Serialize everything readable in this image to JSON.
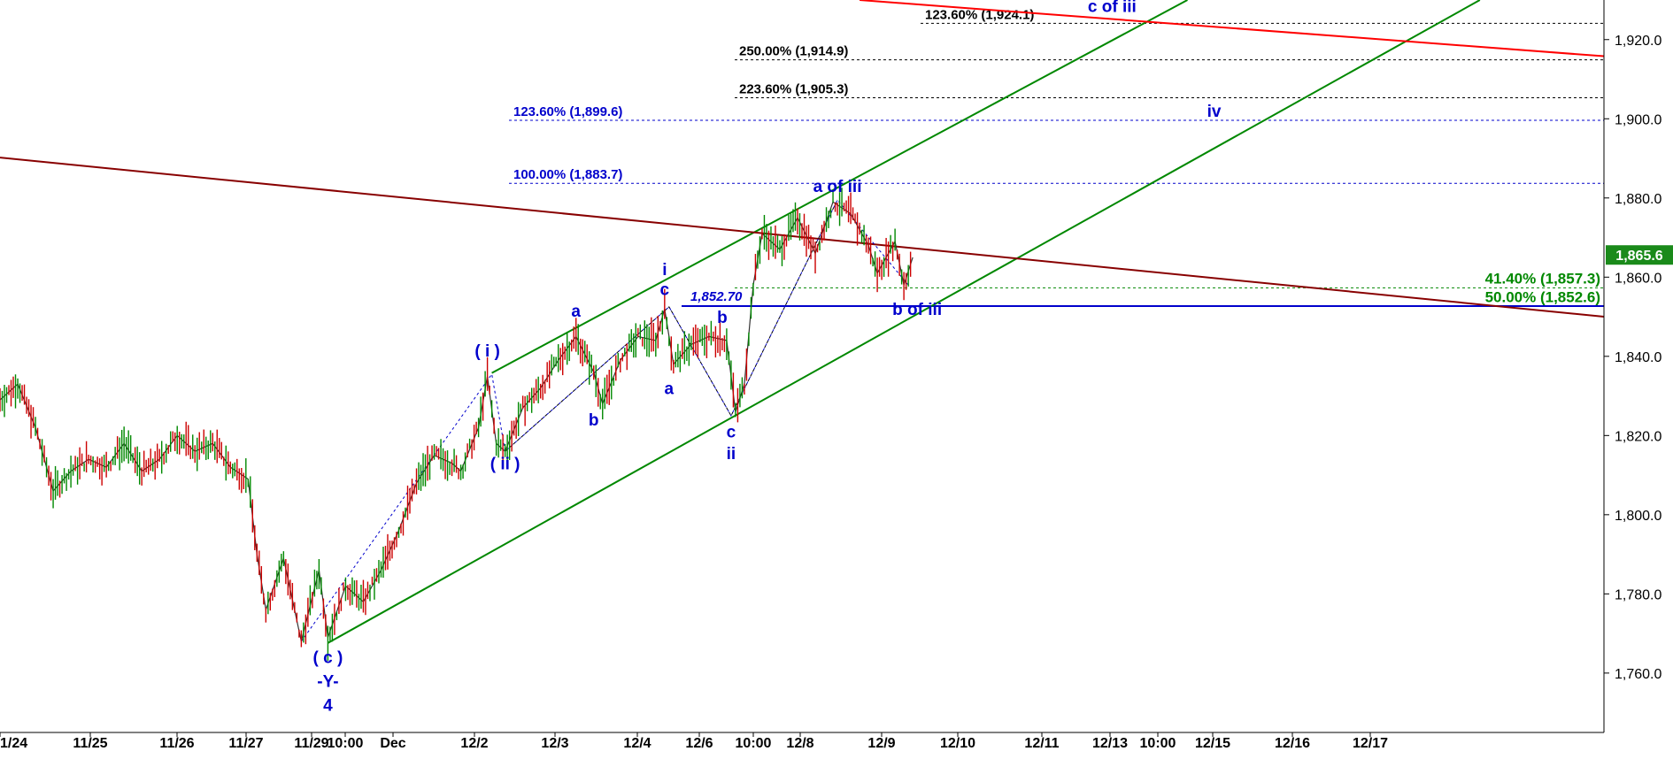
{
  "chart_data": {
    "type": "line",
    "title": "",
    "xlabel": "",
    "ylabel": "",
    "ylim": [
      1745,
      1930
    ],
    "y_ticks": [
      1760,
      1780,
      1800,
      1820,
      1840,
      1860,
      1880,
      1900,
      1920
    ],
    "y_tick_labels": [
      "1,760.0",
      "1,780.0",
      "1,800.0",
      "1,820.0",
      "1,840.0",
      "1,860.0",
      "1,880.0",
      "1,900.0",
      "1,920.0"
    ],
    "x_ticks": [
      "1/24",
      "11/25",
      "11/26",
      "11/27",
      "11/29",
      "10:00",
      "Dec",
      "12/2",
      "12/3",
      "12/4",
      "12/6",
      "10:00",
      "12/8",
      "12/9",
      "12/10",
      "12/11",
      "12/13",
      "10:00",
      "12/15",
      "12/16",
      "12/17"
    ],
    "last_price": 1865.6,
    "last_price_label": "1,865.6",
    "price_path": [
      [
        0,
        1829
      ],
      [
        2,
        1833
      ],
      [
        4,
        1822
      ],
      [
        6,
        1806
      ],
      [
        8,
        1811
      ],
      [
        10,
        1814
      ],
      [
        12,
        1812
      ],
      [
        14,
        1818
      ],
      [
        16,
        1811
      ],
      [
        18,
        1814
      ],
      [
        20,
        1820
      ],
      [
        22,
        1816
      ],
      [
        24,
        1818
      ],
      [
        26,
        1812
      ],
      [
        28,
        1809
      ],
      [
        29,
        1790
      ],
      [
        30,
        1776
      ],
      [
        32,
        1789
      ],
      [
        34,
        1768
      ],
      [
        36,
        1786
      ],
      [
        37,
        1769
      ],
      [
        39,
        1782
      ],
      [
        41,
        1778
      ],
      [
        43,
        1786
      ],
      [
        45,
        1796
      ],
      [
        47,
        1808
      ],
      [
        49,
        1815
      ],
      [
        51,
        1813
      ],
      [
        52,
        1811
      ],
      [
        54,
        1822
      ],
      [
        55,
        1835
      ],
      [
        56,
        1818
      ],
      [
        57,
        1816
      ],
      [
        59,
        1827
      ],
      [
        61,
        1832
      ],
      [
        63,
        1839
      ],
      [
        65,
        1845
      ],
      [
        67,
        1836
      ],
      [
        68,
        1828
      ],
      [
        70,
        1839
      ],
      [
        72,
        1845
      ],
      [
        74,
        1844
      ],
      [
        75,
        1852
      ],
      [
        76,
        1838
      ],
      [
        78,
        1843
      ],
      [
        80,
        1845
      ],
      [
        82,
        1844
      ],
      [
        83,
        1826
      ],
      [
        84,
        1833
      ],
      [
        85,
        1858
      ],
      [
        86,
        1871
      ],
      [
        88,
        1867
      ],
      [
        90,
        1875
      ],
      [
        92,
        1866
      ],
      [
        94,
        1879
      ],
      [
        96,
        1876
      ],
      [
        98,
        1868
      ],
      [
        99,
        1861
      ],
      [
        101,
        1869
      ],
      [
        102,
        1858
      ],
      [
        103,
        1865
      ]
    ],
    "series": [
      {
        "name": "",
        "values": [
          1829,
          1806,
          1818,
          1809,
          1776,
          1789,
          1768,
          1786,
          1769,
          1808,
          1835,
          1816,
          1845,
          1828,
          1845,
          1852,
          1838,
          1826,
          1871,
          1866,
          1879,
          1861,
          1869,
          1858,
          1865
        ]
      }
    ],
    "fib_levels": [
      {
        "label": "123.60% (1,924.1)",
        "value": 1924.1,
        "color": "#000000"
      },
      {
        "label": "250.00% (1,914.9)",
        "value": 1914.9,
        "color": "#000000"
      },
      {
        "label": "223.60% (1,905.3)",
        "value": 1905.3,
        "color": "#000000"
      },
      {
        "label": "123.60% (1,899.6)",
        "value": 1899.6,
        "color": "#0000cc"
      },
      {
        "label": "100.00% (1,883.7)",
        "value": 1883.7,
        "color": "#0000cc"
      },
      {
        "label": "41.40% (1,857.3)",
        "value": 1857.3,
        "color": "#008800"
      },
      {
        "label": "50.00% (1,852.6)",
        "value": 1852.6,
        "color": "#008800"
      }
    ],
    "support_level": {
      "label": "1,852.70",
      "value": 1852.7,
      "color": "#0000cc"
    },
    "wave_labels": [
      {
        "text": "( c )",
        "x": 37,
        "y": 1762.5
      },
      {
        "text": "-Y-",
        "x": 37,
        "y": 1756.5
      },
      {
        "text": "4",
        "x": 37,
        "y": 1750.5
      },
      {
        "text": "( i )",
        "x": 55,
        "y": 1840
      },
      {
        "text": "( ii )",
        "x": 57,
        "y": 1811.5
      },
      {
        "text": "a",
        "x": 65,
        "y": 1850
      },
      {
        "text": "b",
        "x": 67,
        "y": 1822.5
      },
      {
        "text": "i",
        "x": 75,
        "y": 1860.5
      },
      {
        "text": "c",
        "x": 75,
        "y": 1855.5
      },
      {
        "text": "a",
        "x": 75.5,
        "y": 1830.5
      },
      {
        "text": "b",
        "x": 81.5,
        "y": 1848.5
      },
      {
        "text": "c",
        "x": 82.5,
        "y": 1819.5
      },
      {
        "text": "ii",
        "x": 82.5,
        "y": 1814
      },
      {
        "text": "a of iii",
        "x": 94.5,
        "y": 1881.5
      },
      {
        "text": "b of iii",
        "x": 103.5,
        "y": 1850.5
      },
      {
        "text": "iv",
        "x": 137,
        "y": 1900.5
      },
      {
        "text": "c of iii",
        "x": 125.5,
        "y": 1927
      }
    ],
    "trend_lines": [
      {
        "color": "#008800",
        "points": [
          [
            55.5,
            1835.8
          ],
          [
            134,
            1930
          ]
        ]
      },
      {
        "color": "#008800",
        "points": [
          [
            37,
            1767.6
          ],
          [
            167,
            1930
          ]
        ]
      },
      {
        "color": "#880000",
        "points": [
          [
            0,
            1890.2
          ],
          [
            181,
            1850
          ]
        ]
      },
      {
        "color": "#ff0000",
        "points": [
          [
            97,
            1930
          ],
          [
            181,
            1915.8
          ]
        ]
      }
    ],
    "wave_guides": [
      [
        [
          34,
          1768
        ],
        [
          55.5,
          1835.5
        ],
        [
          57,
          1816
        ],
        [
          75.5,
          1852.5
        ],
        [
          82.5,
          1825
        ],
        [
          94.5,
          1879.5
        ],
        [
          102.5,
          1858
        ]
      ],
      [
        [
          57,
          1816
        ],
        [
          75.5,
          1852.5
        ],
        [
          82.5,
          1825
        ],
        [
          94.5,
          1879.5
        ]
      ]
    ],
    "grid": false,
    "legend": "none"
  }
}
